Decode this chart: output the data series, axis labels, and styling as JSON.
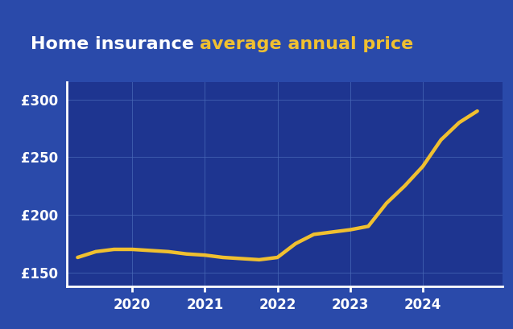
{
  "title_part1": "Home insurance ",
  "title_part2": "average annual price",
  "title_color1": "#ffffff",
  "title_color2": "#f0c030",
  "title_bg_color": "#1a2570",
  "outer_bg_color": "#2a4aaa",
  "chart_bg_color": "#1e3590",
  "line_color": "#f0c030",
  "line_width": 3.2,
  "grid_color": "#3a5aaa",
  "tick_label_color": "#ffffff",
  "ylim": [
    138,
    315
  ],
  "yticks": [
    150,
    200,
    250,
    300
  ],
  "ytick_labels": [
    "£150",
    "£200",
    "£250",
    "£300"
  ],
  "xtick_labels": [
    "2020",
    "2021",
    "2022",
    "2023",
    "2024"
  ],
  "x": [
    2019.25,
    2019.5,
    2019.75,
    2020.0,
    2020.25,
    2020.5,
    2020.75,
    2021.0,
    2021.25,
    2021.5,
    2021.75,
    2022.0,
    2022.25,
    2022.5,
    2022.75,
    2023.0,
    2023.25,
    2023.5,
    2023.75,
    2024.0,
    2024.25,
    2024.5,
    2024.75
  ],
  "y": [
    163,
    168,
    170,
    170,
    169,
    168,
    166,
    165,
    163,
    162,
    161,
    163,
    175,
    183,
    185,
    187,
    190,
    210,
    225,
    242,
    265,
    280,
    290
  ],
  "xlim": [
    2019.1,
    2025.1
  ]
}
